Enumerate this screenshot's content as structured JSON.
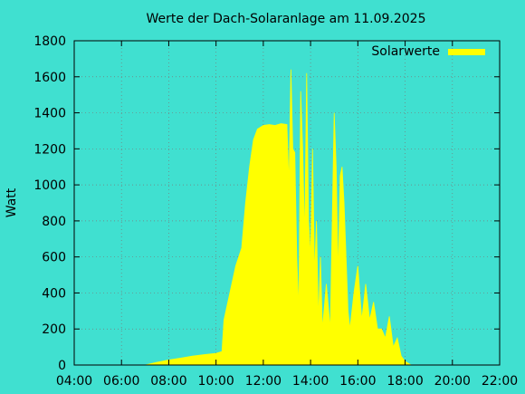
{
  "chart_data": {
    "type": "area",
    "title": "Werte der Dach-Solaranlage am 11.09.2025",
    "ylabel": "Watt",
    "xlim": [
      "04:00",
      "22:00"
    ],
    "ylim": [
      0,
      1800
    ],
    "x_ticks": [
      "04:00",
      "06:00",
      "08:00",
      "10:00",
      "12:00",
      "14:00",
      "16:00",
      "18:00",
      "20:00",
      "22:00"
    ],
    "y_ticks": [
      "0",
      "200",
      "400",
      "600",
      "800",
      "1000",
      "1200",
      "1400",
      "1600",
      "1800"
    ],
    "grid": true,
    "legend_position": "top-right",
    "colors": {
      "background": "#40E0D0",
      "series": "#FFFF00"
    },
    "series": [
      {
        "name": "Solarwerte",
        "points": [
          [
            "07:00",
            0
          ],
          [
            "07:30",
            15
          ],
          [
            "08:00",
            28
          ],
          [
            "08:30",
            38
          ],
          [
            "09:00",
            50
          ],
          [
            "09:30",
            58
          ],
          [
            "10:00",
            65
          ],
          [
            "10:15",
            75
          ],
          [
            "10:20",
            250
          ],
          [
            "10:35",
            400
          ],
          [
            "10:50",
            550
          ],
          [
            "11:05",
            650
          ],
          [
            "11:15",
            900
          ],
          [
            "11:25",
            1100
          ],
          [
            "11:35",
            1250
          ],
          [
            "11:45",
            1310
          ],
          [
            "12:00",
            1330
          ],
          [
            "12:15",
            1335
          ],
          [
            "12:30",
            1330
          ],
          [
            "12:45",
            1340
          ],
          [
            "13:00",
            1335
          ],
          [
            "13:05",
            1000
          ],
          [
            "13:10",
            1640
          ],
          [
            "13:15",
            1200
          ],
          [
            "13:20",
            1180
          ],
          [
            "13:25",
            600
          ],
          [
            "13:30",
            300
          ],
          [
            "13:35",
            1520
          ],
          [
            "13:40",
            1200
          ],
          [
            "13:45",
            700
          ],
          [
            "13:50",
            1620
          ],
          [
            "13:55",
            800
          ],
          [
            "14:00",
            600
          ],
          [
            "14:05",
            1200
          ],
          [
            "14:10",
            500
          ],
          [
            "14:15",
            800
          ],
          [
            "14:20",
            250
          ],
          [
            "14:25",
            600
          ],
          [
            "14:30",
            200
          ],
          [
            "14:40",
            450
          ],
          [
            "14:50",
            200
          ],
          [
            "15:00",
            1400
          ],
          [
            "15:05",
            1100
          ],
          [
            "15:10",
            500
          ],
          [
            "15:15",
            1050
          ],
          [
            "15:20",
            1100
          ],
          [
            "15:25",
            900
          ],
          [
            "15:30",
            600
          ],
          [
            "15:35",
            300
          ],
          [
            "15:40",
            200
          ],
          [
            "15:50",
            400
          ],
          [
            "16:00",
            550
          ],
          [
            "16:10",
            250
          ],
          [
            "16:20",
            450
          ],
          [
            "16:30",
            250
          ],
          [
            "16:40",
            350
          ],
          [
            "16:50",
            200
          ],
          [
            "17:00",
            200
          ],
          [
            "17:10",
            150
          ],
          [
            "17:20",
            270
          ],
          [
            "17:30",
            100
          ],
          [
            "17:40",
            150
          ],
          [
            "17:50",
            50
          ],
          [
            "18:00",
            20
          ],
          [
            "18:15",
            0
          ]
        ]
      }
    ]
  }
}
